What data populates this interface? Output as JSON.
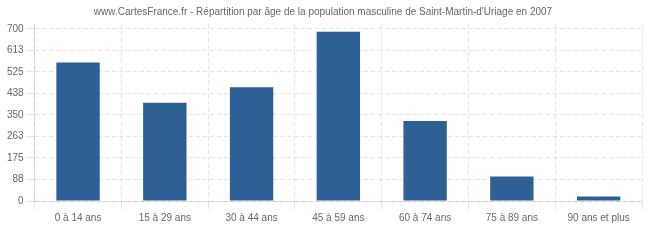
{
  "chart_data": {
    "type": "bar",
    "title": "www.CartesFrance.fr - Répartition par âge de la population masculine de Saint-Martin-d'Uriage en 2007",
    "categories": [
      "0 à 14 ans",
      "15 à 29 ans",
      "30 à 44 ans",
      "45 à 59 ans",
      "60 à 74 ans",
      "75 à 89 ans",
      "90 ans et plus"
    ],
    "values": [
      563,
      400,
      463,
      688,
      325,
      100,
      18
    ],
    "color": "#2e6095",
    "ylim": [
      0,
      720
    ],
    "yticks": [
      0,
      88,
      175,
      263,
      350,
      438,
      525,
      613,
      700
    ],
    "grid": true
  }
}
